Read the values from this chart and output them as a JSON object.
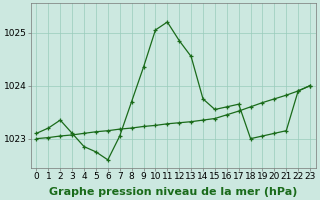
{
  "hours": [
    0,
    1,
    2,
    3,
    4,
    5,
    6,
    7,
    8,
    9,
    10,
    11,
    12,
    13,
    14,
    15,
    16,
    17,
    18,
    19,
    20,
    21,
    22,
    23
  ],
  "series1": [
    1023.1,
    1023.2,
    1023.35,
    1023.1,
    1022.85,
    1022.75,
    1022.6,
    1023.05,
    1023.7,
    1024.35,
    1025.05,
    1025.2,
    1024.85,
    1024.55,
    1023.75,
    1023.55,
    1023.6,
    1023.65,
    1023.0,
    1023.05,
    1023.1,
    1023.15,
    1023.9,
    1024.0
  ],
  "series2": [
    1023.0,
    1023.02,
    1023.05,
    1023.07,
    1023.1,
    1023.13,
    1023.15,
    1023.18,
    1023.2,
    1023.23,
    1023.25,
    1023.28,
    1023.3,
    1023.32,
    1023.35,
    1023.38,
    1023.45,
    1023.52,
    1023.6,
    1023.68,
    1023.75,
    1023.82,
    1023.9,
    1024.0
  ],
  "line_color": "#1a6b1a",
  "bg_color": "#cce8e0",
  "grid_color": "#99ccbb",
  "ylabel_ticks": [
    1023,
    1024,
    1025
  ],
  "ylim": [
    1022.45,
    1025.55
  ],
  "xlim": [
    -0.5,
    23.5
  ],
  "xlabel": "Graphe pression niveau de la mer (hPa)",
  "xlabel_fontsize": 8,
  "tick_fontsize": 6.5,
  "marker": "+"
}
